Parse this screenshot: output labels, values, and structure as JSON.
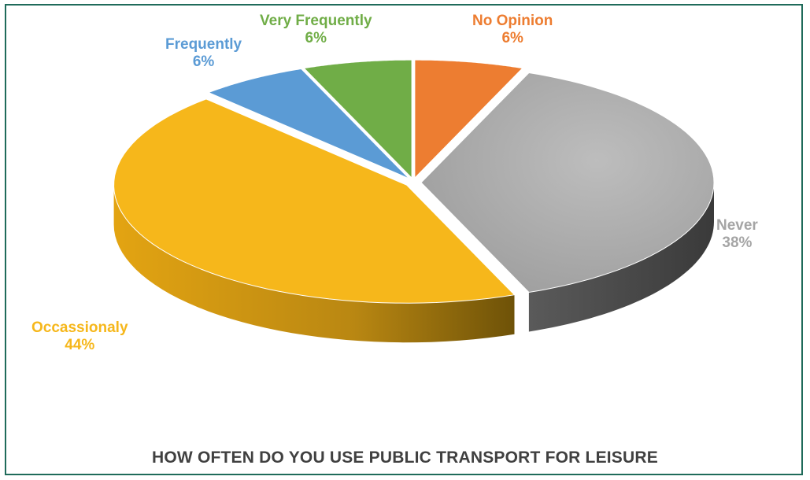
{
  "chart_data": {
    "type": "pie",
    "title": "HOW OFTEN DO YOU USE PUBLIC TRANSPORT FOR LEISURE",
    "slices": [
      {
        "label": "No Opinion",
        "value": 6,
        "value_label": "6%",
        "color": "#ed7d31"
      },
      {
        "label": "Never",
        "value": 38,
        "value_label": "38%",
        "color": "#a5a5a5"
      },
      {
        "label": "Occassionaly",
        "value": 44,
        "value_label": "44%",
        "color": "#f6b71b"
      },
      {
        "label": "Frequently",
        "value": 6,
        "value_label": "6%",
        "color": "#5b9bd5"
      },
      {
        "label": "Very Frequently",
        "value": 6,
        "value_label": "6%",
        "color": "#70ad47"
      }
    ],
    "style": "3d-exploded",
    "label_colors": {
      "No Opinion": "#ed7d31",
      "Never": "#a5a5a5",
      "Occassionaly": "#f6b71b",
      "Frequently": "#5b9bd5",
      "Very Frequently": "#70ad47"
    }
  }
}
